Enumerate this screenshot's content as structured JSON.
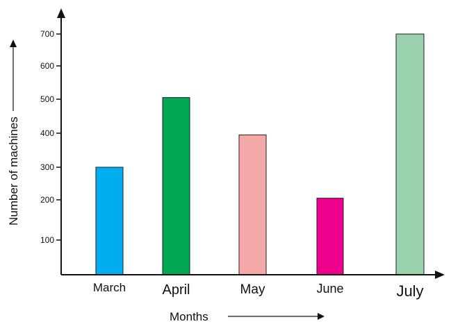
{
  "chart_data": {
    "type": "bar",
    "title": "",
    "xlabel": "Months",
    "ylabel": "Number of machines",
    "categories": [
      "March",
      "April",
      "May",
      "June",
      "July"
    ],
    "values": [
      300,
      505,
      395,
      205,
      700
    ],
    "colors": [
      "#00aeef",
      "#00a651",
      "#f4a8a8",
      "#ec008c",
      "#99d1ad"
    ],
    "yticks": [
      100,
      200,
      300,
      400,
      500,
      600,
      700
    ],
    "ylim": [
      0,
      700
    ],
    "grid": false,
    "legend": "none"
  }
}
